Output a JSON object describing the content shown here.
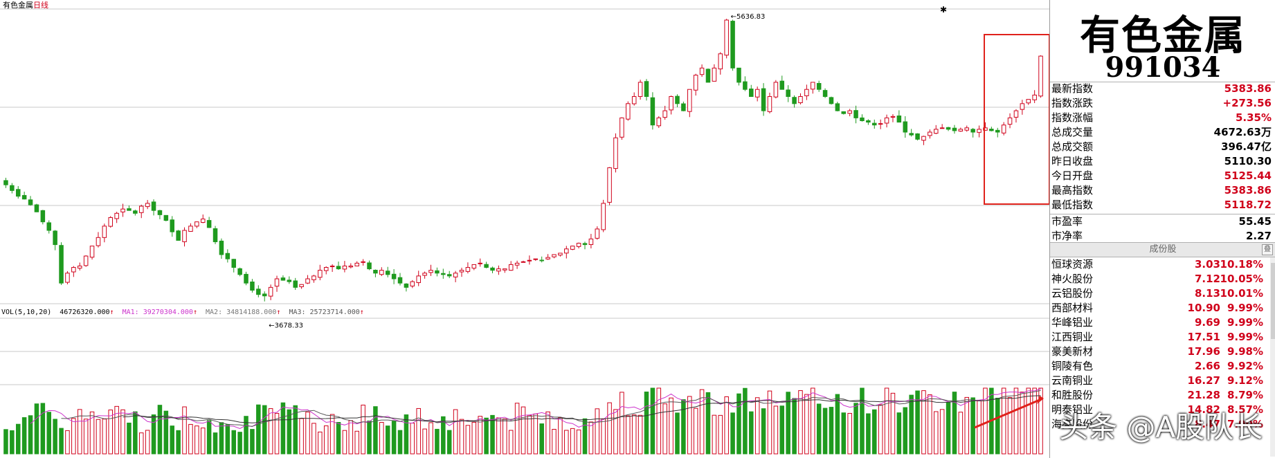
{
  "chart_title": {
    "name": "有色金属",
    "period": "日线"
  },
  "header": {
    "name": "有色金属",
    "code": "991034"
  },
  "stats": [
    {
      "label": "最新指数",
      "value": "5383.86",
      "color": "red"
    },
    {
      "label": "指数涨跌",
      "value": "+273.56",
      "color": "red"
    },
    {
      "label": "指数涨幅",
      "value": "5.35%",
      "color": "red"
    },
    {
      "label": "总成交量",
      "value": "4672.63万",
      "color": "black"
    },
    {
      "label": "总成交额",
      "value": "396.47亿",
      "color": "black"
    },
    {
      "label": "昨日收盘",
      "value": "5110.30",
      "color": "black"
    },
    {
      "label": "今日开盘",
      "value": "5125.44",
      "color": "red"
    },
    {
      "label": "最高指数",
      "value": "5383.86",
      "color": "red"
    },
    {
      "label": "最低指数",
      "value": "5118.72",
      "color": "red"
    }
  ],
  "ratios": [
    {
      "label": "市盈率",
      "value": "55.45"
    },
    {
      "label": "市净率",
      "value": "2.27"
    }
  ],
  "components_header": "成份股",
  "components_btn": "叠",
  "components": [
    {
      "name": "恒球资源",
      "price": "3.03",
      "pct": "10.18%"
    },
    {
      "name": "神火股份",
      "price": "7.12",
      "pct": "10.05%"
    },
    {
      "name": "云铝股份",
      "price": "8.13",
      "pct": "10.01%"
    },
    {
      "name": "西部材料",
      "price": "10.90",
      "pct": "9.99%"
    },
    {
      "name": "华峰铝业",
      "price": "9.69",
      "pct": "9.99%"
    },
    {
      "name": "江西铜业",
      "price": "17.51",
      "pct": "9.99%"
    },
    {
      "name": "豪美新材",
      "price": "17.96",
      "pct": "9.98%"
    },
    {
      "name": "铜陵有色",
      "price": "2.66",
      "pct": "9.92%"
    },
    {
      "name": "云南铜业",
      "price": "16.27",
      "pct": "9.12%"
    },
    {
      "name": "和胜股份",
      "price": "21.28",
      "pct": "8.79%"
    },
    {
      "name": "明泰铝业",
      "price": "14.82",
      "pct": "8.57%"
    },
    {
      "name": "海亮股份",
      "price": "8.47",
      "pct": "7.90%"
    }
  ],
  "volume_header": {
    "label": "VOL(5,10,20)",
    "vol": "46726320.000",
    "ma1": "MA1: 39270304.000",
    "ma2": "MA2: 34814188.000",
    "ma3": "MA3: 25723714.000"
  },
  "watermark": "头条 @A股队长",
  "colors": {
    "up": "#d0021b",
    "down": "#1f9a1f",
    "ma1": "#cc33cc",
    "ma2": "#555555",
    "ma3": "#333333"
  },
  "chart_data": {
    "type": "candlestick",
    "high_label": "5636.83",
    "low_label": "3678.33",
    "ylim": [
      3650,
      5700
    ],
    "closes": [
      4480,
      4440,
      4400,
      4380,
      4340,
      4290,
      4220,
      4160,
      4060,
      3790,
      3860,
      3900,
      3910,
      3980,
      4050,
      4110,
      4190,
      4250,
      4280,
      4310,
      4300,
      4280,
      4330,
      4350,
      4300,
      4270,
      4230,
      4150,
      4090,
      4160,
      4190,
      4220,
      4240,
      4180,
      4080,
      3990,
      3960,
      3900,
      3850,
      3790,
      3740,
      3710,
      3700,
      3760,
      3820,
      3810,
      3800,
      3760,
      3780,
      3820,
      3840,
      3880,
      3900,
      3910,
      3890,
      3910,
      3910,
      3930,
      3940,
      3890,
      3860,
      3880,
      3850,
      3820,
      3790,
      3760,
      3800,
      3840,
      3860,
      3880,
      3860,
      3850,
      3840,
      3860,
      3880,
      3900,
      3920,
      3930,
      3900,
      3880,
      3890,
      3890,
      3920,
      3930,
      3940,
      3950,
      3960,
      3950,
      3970,
      3990,
      4000,
      4030,
      4050,
      4070,
      4060,
      4100,
      4170,
      4350,
      4600,
      4810,
      4950,
      5050,
      5100,
      5200,
      5100,
      4900,
      4950,
      5000,
      5100,
      5050,
      5000,
      5150,
      5250,
      5300,
      5200,
      5300,
      5400,
      5636.83,
      5300,
      5200,
      5150,
      5100,
      5150,
      5000,
      5100,
      5200,
      5150,
      5100,
      5050,
      5100,
      5150,
      5200,
      5150,
      5100,
      5050,
      5000,
      4980,
      5000,
      4950,
      4930,
      4920,
      4900,
      4910,
      4950,
      4960,
      4920,
      4850,
      4830,
      4800,
      4820,
      4850,
      4870,
      4880,
      4870,
      4860,
      4870,
      4880,
      4850,
      4870,
      4880,
      4860,
      4850,
      4900,
      4950,
      5000,
      5050,
      5080,
      5110.3,
      5383.86
    ]
  }
}
